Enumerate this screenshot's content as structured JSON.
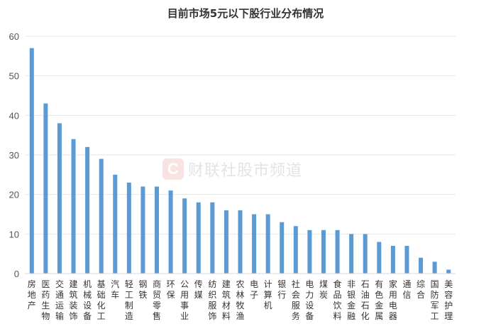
{
  "chart_data": {
    "type": "bar",
    "title": "目前市场5元以下股行业分布情况",
    "xlabel": "",
    "ylabel": "",
    "ylim": [
      0,
      60
    ],
    "yticks": [
      0,
      10,
      20,
      30,
      40,
      50,
      60
    ],
    "grid": true,
    "legend": "none",
    "bar_color": "#5b9bd5",
    "categories": [
      "房地产",
      "医药生物",
      "交通运输",
      "建筑装饰",
      "机械设备",
      "基础化工",
      "汽车",
      "轻工制造",
      "钢铁",
      "商贸零售",
      "环保",
      "公用事业",
      "传媒",
      "纺织服饰",
      "建筑材料",
      "农林牧渔",
      "电子",
      "计算机",
      "银行",
      "社会服务",
      "电力设备",
      "煤炭",
      "食品饮料",
      "非银金融",
      "石油石化",
      "有色金属",
      "家用电器",
      "通信",
      "综合",
      "国防军工",
      "美容护理"
    ],
    "values": [
      57,
      43,
      38,
      34,
      32,
      29,
      25,
      23,
      22,
      22,
      21,
      19,
      18,
      18,
      16,
      16,
      15,
      15,
      13,
      12,
      11,
      11,
      11,
      10,
      10,
      8,
      7,
      7,
      4,
      3,
      1
    ]
  },
  "watermark": {
    "logo_letter": "C",
    "text": "财联社股市频道"
  }
}
